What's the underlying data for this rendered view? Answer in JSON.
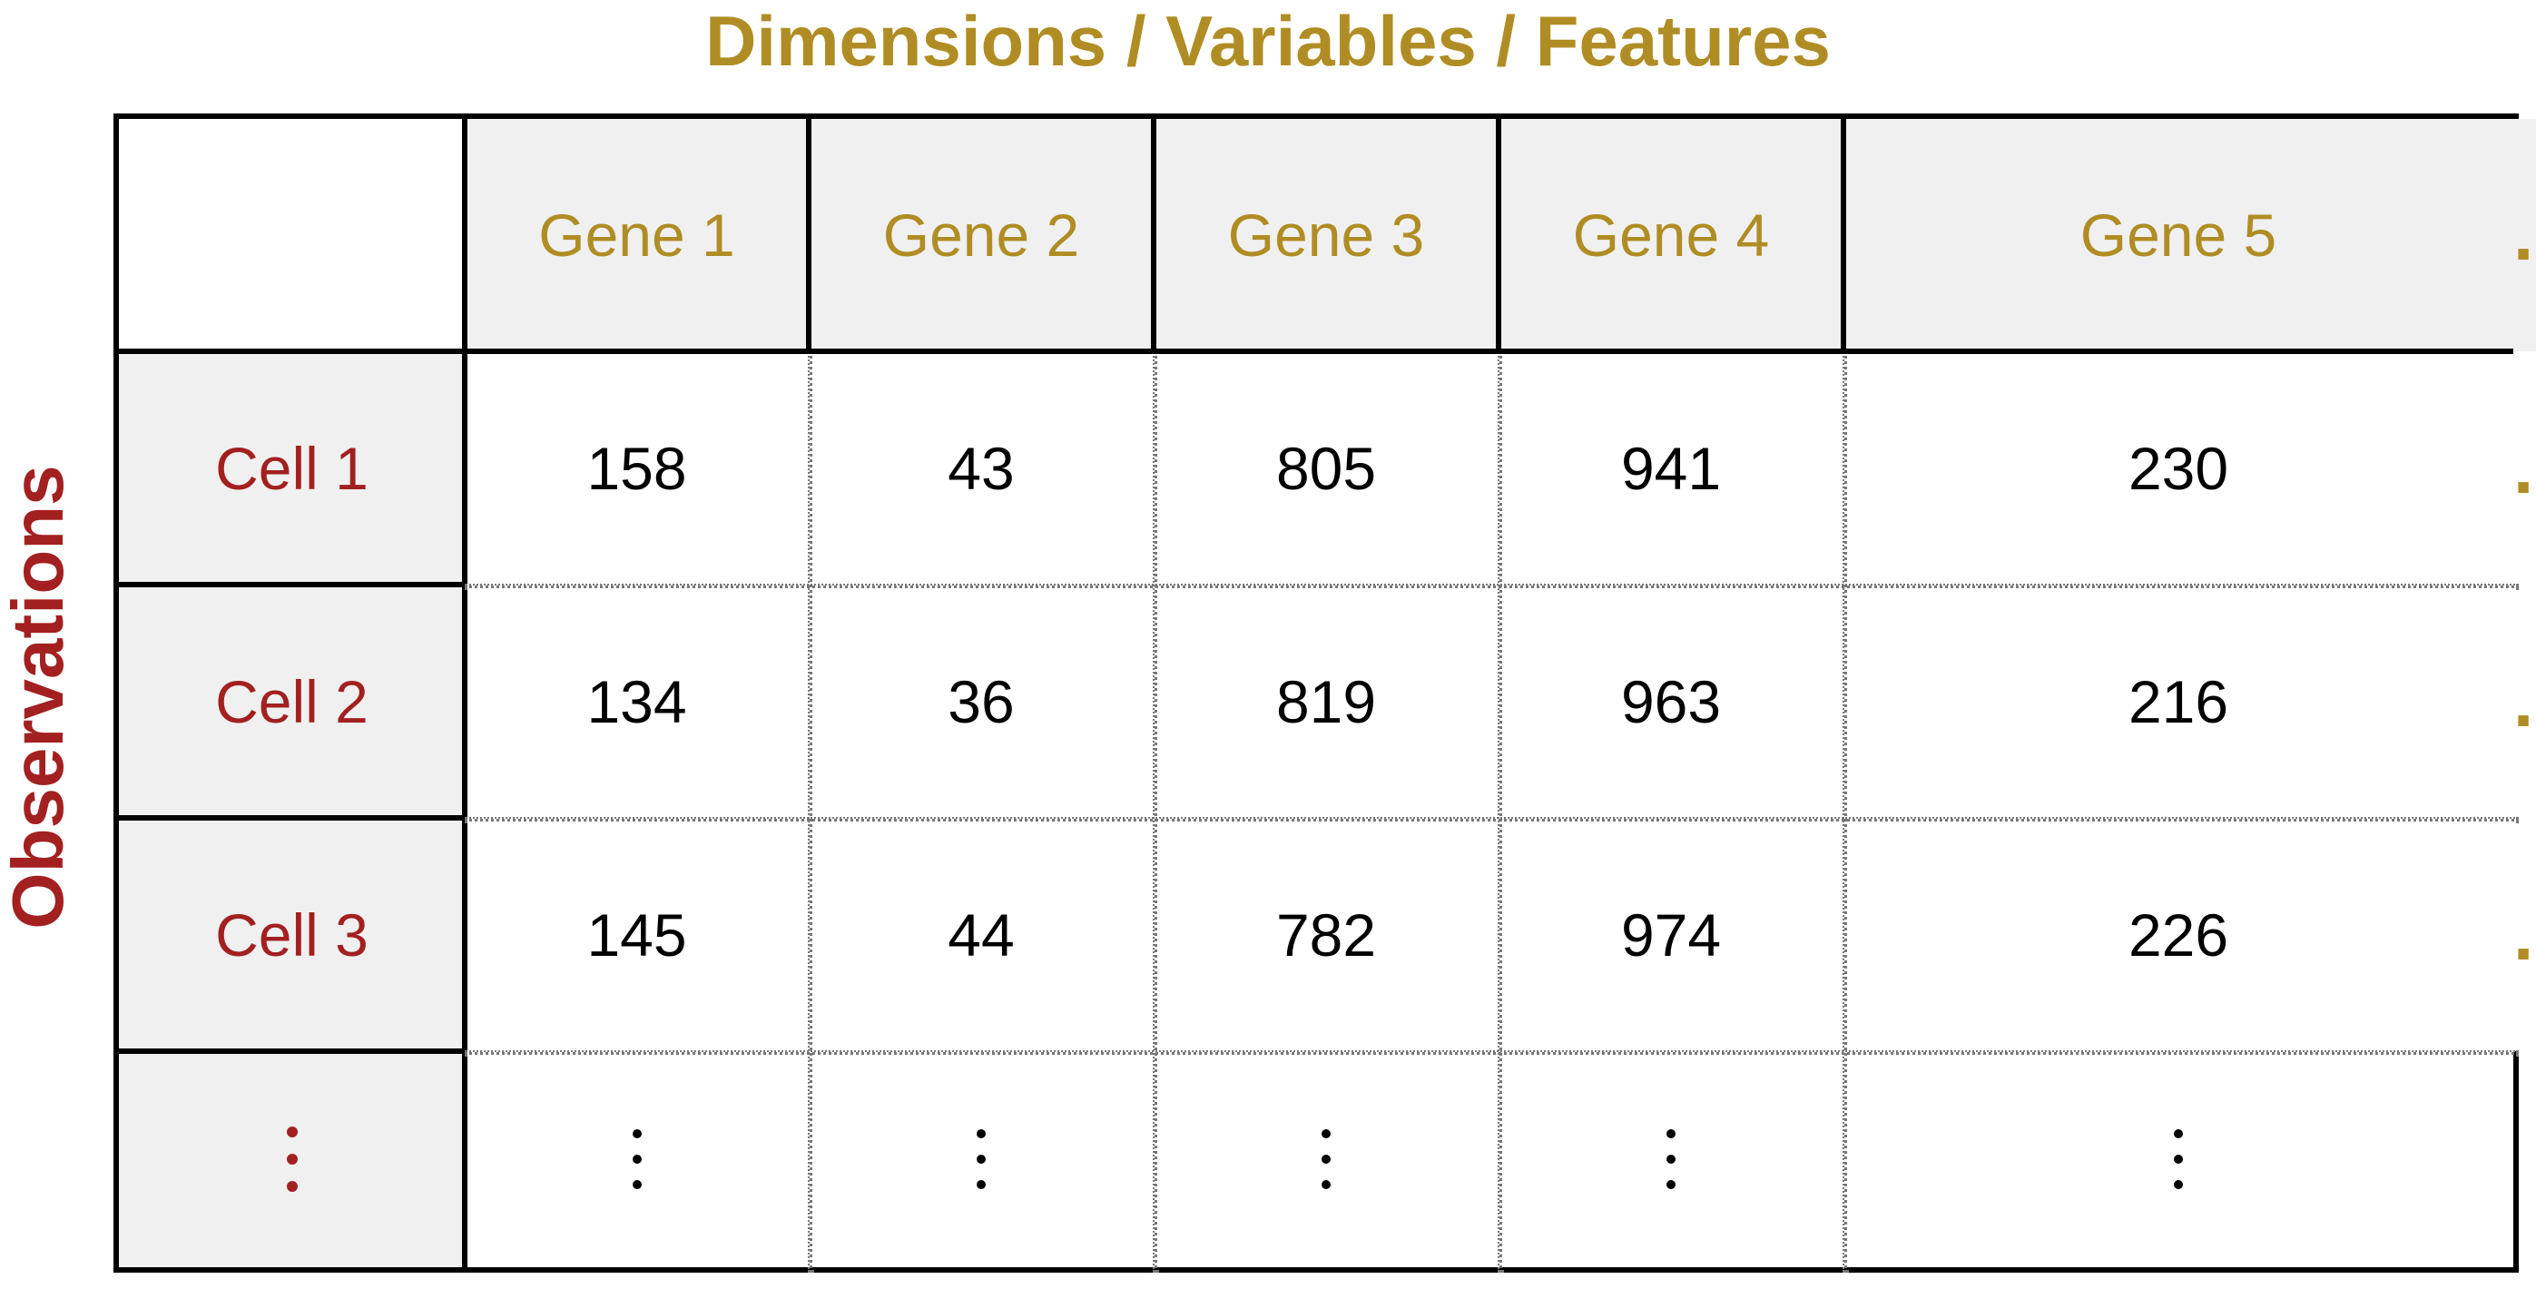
{
  "diagram": {
    "top_title": "Dimensions / Variables / Features",
    "side_title": "Observations",
    "column_headers": [
      "Gene 1",
      "Gene 2",
      "Gene 3",
      "Gene 4",
      "Gene 5",
      "..."
    ],
    "row_headers": [
      "Cell 1",
      "Cell 2",
      "Cell 3",
      "⋮"
    ],
    "rows": [
      [
        "158",
        "43",
        "805",
        "941",
        "230",
        "..."
      ],
      [
        "134",
        "36",
        "819",
        "963",
        "216",
        "..."
      ],
      [
        "145",
        "44",
        "782",
        "974",
        "226",
        "..."
      ],
      [
        "⋮",
        "⋮",
        "⋮",
        "⋮",
        "⋮",
        ""
      ]
    ],
    "colors": {
      "feature_gold": "#b08d24",
      "observation_red": "#a32020",
      "header_gray": "#f0f0f0"
    }
  }
}
